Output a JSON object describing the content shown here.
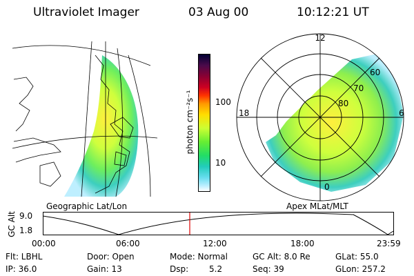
{
  "header": {
    "title": "Ultraviolet Imager",
    "date": "03 Aug 00",
    "time": "10:12:21 UT"
  },
  "geo_panel": {
    "label": "Geographic Lat/Lon"
  },
  "polar_panel": {
    "label": "Apex MLat/MLT",
    "mlt_labels": [
      "12",
      "18",
      "6",
      "0"
    ],
    "lat_labels": [
      "60",
      "70",
      "80"
    ]
  },
  "colorbar": {
    "unit_label": "photon cm⁻²s⁻¹",
    "ticks": [
      "100",
      "10"
    ],
    "colors": [
      "#000033",
      "#4a0a4a",
      "#8a0033",
      "#cc0022",
      "#ff3300",
      "#ff9900",
      "#ffdd00",
      "#ccff33",
      "#66ee33",
      "#22dd66",
      "#22ccbb",
      "#66ddee",
      "#bbeeff",
      "#ffffff"
    ]
  },
  "gc_plot": {
    "ylabel": "GC Alt",
    "y_ticks": [
      "9.0",
      "1.8"
    ],
    "x_ticks": [
      "00:00",
      "06:00",
      "12:00",
      "18:00",
      "23:59"
    ],
    "marker_color": "#dd0000"
  },
  "info": {
    "filter": "Flt: LBHL",
    "ip": "IP: 36.0",
    "door": "Door: Open",
    "gain": "Gain: 13",
    "mode": "Mode: Normal",
    "dsp_label": "Dsp:",
    "dsp_value": "5.2",
    "gc_alt": "GC Alt: 8.0 Re",
    "seq": "Seq: 39",
    "glat": "GLat: 55.0",
    "glon": "GLon: 257.2"
  }
}
